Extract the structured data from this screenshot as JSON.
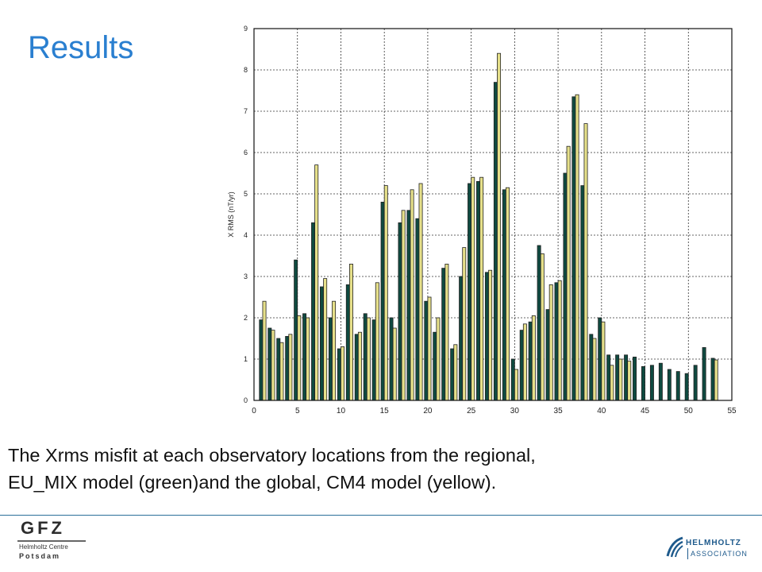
{
  "slide": {
    "title": "Results",
    "caption_line1": "The Xrms misfit at each observatory locations from the regional,",
    "caption_line2": "EU_MIX model (green)and the global, CM4 model (yellow)."
  },
  "logos": {
    "gfz_main": "GFZ",
    "gfz_sub1": "Helmholtz Centre",
    "gfz_sub2": "Potsdam",
    "helmholtz_line1": "HELMHOLTZ",
    "helmholtz_line2": "ASSOCIATION"
  },
  "colors": {
    "title": "#2a7fd0",
    "green_bar": "#0f4a40",
    "yellow_bar": "#e6e08a",
    "bar_edge": "#222222",
    "divider": "#2a6f9a"
  },
  "chart_data": {
    "type": "bar",
    "ylabel": "X RMS (nT/yr)",
    "xlabel": "",
    "xlim": [
      0,
      55
    ],
    "ylim": [
      0,
      9
    ],
    "xticks": [
      0,
      5,
      10,
      15,
      20,
      25,
      30,
      35,
      40,
      45,
      50,
      55
    ],
    "yticks": [
      0,
      1,
      2,
      3,
      4,
      5,
      6,
      7,
      8,
      9
    ],
    "grid": true,
    "categories": [
      1,
      2,
      3,
      4,
      5,
      6,
      7,
      8,
      9,
      10,
      11,
      12,
      13,
      14,
      15,
      16,
      17,
      18,
      19,
      20,
      21,
      22,
      23,
      24,
      25,
      26,
      27,
      28,
      29,
      30,
      31,
      32,
      33,
      34,
      35,
      36,
      37,
      38,
      39,
      40,
      41,
      42,
      43,
      44,
      45,
      46,
      47,
      48,
      49,
      50,
      51,
      52,
      53,
      54
    ],
    "series": [
      {
        "name": "EU_MIX model",
        "color_key": "green_bar",
        "values": [
          1.95,
          1.75,
          1.5,
          1.55,
          3.4,
          2.1,
          4.3,
          2.75,
          2.0,
          1.25,
          2.8,
          1.6,
          2.1,
          1.95,
          4.8,
          2.0,
          4.3,
          4.6,
          4.4,
          2.4,
          1.65,
          3.2,
          1.25,
          3.0,
          5.25,
          5.3,
          3.1,
          7.7,
          5.1,
          1.0,
          1.7,
          1.9,
          3.75,
          2.2,
          2.85,
          5.5,
          7.35,
          5.2,
          1.6,
          2.0,
          1.1,
          1.1,
          1.1,
          1.05,
          0.82,
          0.85,
          0.9,
          0.75,
          0.7,
          0.65,
          0.85,
          1.28,
          1.02,
          0
        ]
      },
      {
        "name": "CM4 model",
        "color_key": "yellow_bar",
        "values": [
          2.4,
          1.7,
          1.4,
          1.6,
          2.05,
          2.0,
          5.7,
          2.95,
          2.4,
          1.3,
          3.3,
          1.65,
          2.0,
          2.85,
          5.2,
          1.75,
          4.6,
          5.1,
          5.25,
          2.5,
          2.0,
          3.3,
          1.35,
          3.7,
          5.4,
          5.4,
          3.15,
          8.4,
          5.15,
          0.75,
          1.85,
          2.05,
          3.55,
          2.8,
          2.9,
          6.15,
          7.4,
          6.7,
          1.5,
          1.9,
          0.85,
          1.0,
          0.95,
          0,
          0,
          0,
          0,
          0,
          0,
          0,
          0,
          0,
          0.98,
          0
        ]
      }
    ]
  }
}
